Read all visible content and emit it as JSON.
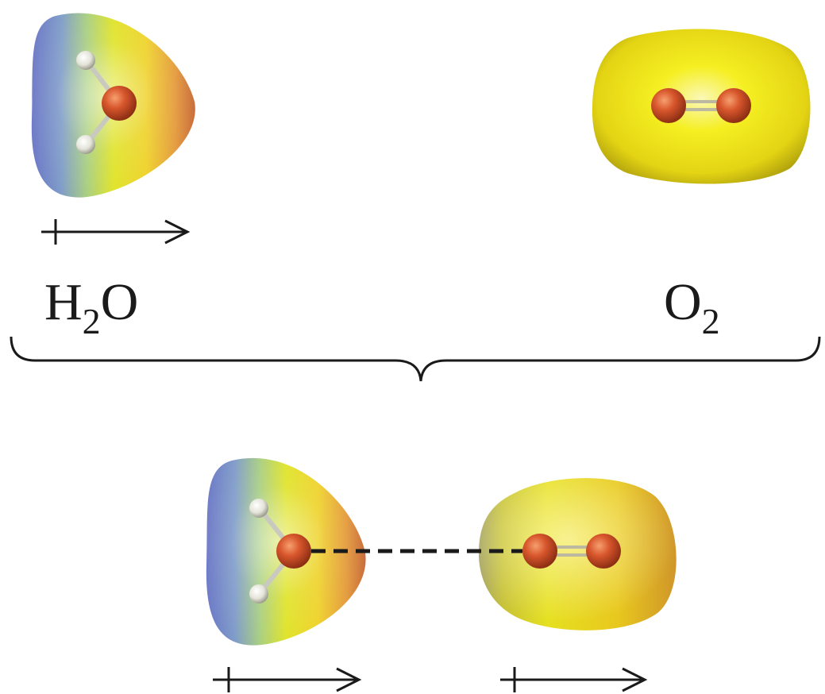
{
  "labels": {
    "water": {
      "main": "H",
      "sub": "2",
      "tail": "O"
    },
    "oxygen": {
      "main": "O",
      "sub": "2"
    }
  },
  "colors": {
    "positive_region": "#6d78c8",
    "neutral_region": "#e8ea1e",
    "negative_region": "#d8683a",
    "oxygen_atom": "#d2542a",
    "hydrogen_atom": "#e6e6dc",
    "o2_cloud": "#f2ee1a",
    "induced_o2_cloud": "#c9b81c",
    "line": "#1a1a1a"
  },
  "icons": {
    "dipole_arrow": "crossed-arrow-icon",
    "bracket": "curly-brace-icon"
  }
}
